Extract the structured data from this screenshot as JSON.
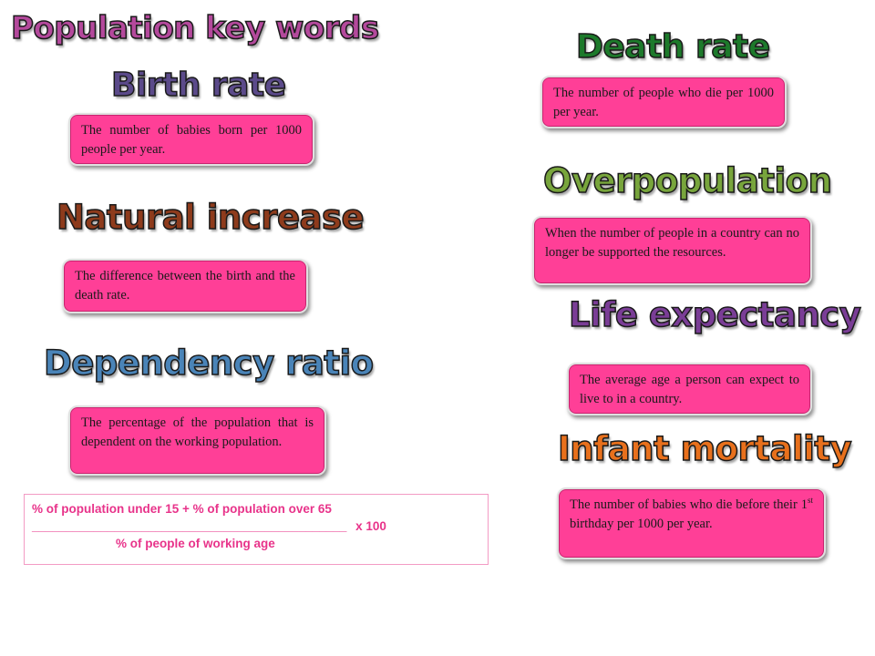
{
  "title": {
    "text": "Population key words",
    "color": "#b4499c"
  },
  "terms": {
    "birth_rate": {
      "heading": "Birth rate",
      "color": "#5b4a8a",
      "definition": "The number of babies born per 1000 people per year."
    },
    "natural_increase": {
      "heading": "Natural increase",
      "color": "#8e3b1c",
      "definition": "The difference between the birth and the death rate."
    },
    "dependency_ratio": {
      "heading": "Dependency ratio",
      "color": "#4a84b8",
      "definition": "The percentage of the population that is dependent on the working population."
    },
    "death_rate": {
      "heading": "Death rate",
      "color": "#1d7a2b",
      "definition": "The number of people who die per 1000 per year."
    },
    "overpopulation": {
      "heading": "Overpopulation",
      "color": "#78a53c",
      "definition": "When the number of people in a country can no longer be supported the resources."
    },
    "life_expectancy": {
      "heading": "Life expectancy",
      "color": "#7a3d96",
      "definition": "The average age a person can expect to live to in a country."
    },
    "infant_mortality": {
      "heading": "Infant mortality",
      "color": "#e8701c",
      "definition_before": "The number of babies who die before their 1",
      "definition_sup": "st",
      "definition_after": " birthday per 1000 per year."
    }
  },
  "formula": {
    "numerator": "% of population under 15 + % of population over 65",
    "divider": "______________________________________________",
    "multiplier": "x 100",
    "denominator": "% of people of working age"
  }
}
